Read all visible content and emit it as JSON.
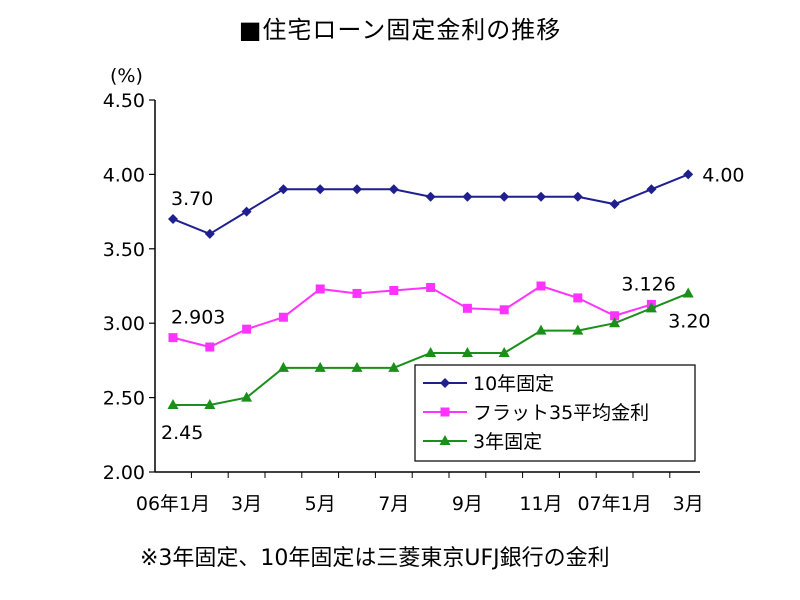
{
  "chart_data": {
    "type": "line",
    "title": "■住宅ローン固定金利の推移",
    "y_unit": "(%)",
    "ylim": [
      2.0,
      4.5
    ],
    "y_ticks": [
      "2.00",
      "2.50",
      "3.00",
      "3.50",
      "4.00",
      "4.50"
    ],
    "x_tick_labels": [
      "06年1月",
      "3月",
      "5月",
      "7月",
      "9月",
      "11月",
      "07年1月",
      "3月"
    ],
    "x_tick_indices": [
      0,
      2,
      4,
      6,
      8,
      10,
      12,
      14
    ],
    "n_points": 15,
    "legend_position": "bottom-right",
    "grid": false,
    "series": [
      {
        "name": "10年固定",
        "color": "#1f1f8f",
        "marker": "diamond",
        "values": [
          3.7,
          3.6,
          3.75,
          3.9,
          3.9,
          3.9,
          3.9,
          3.85,
          3.85,
          3.85,
          3.85,
          3.85,
          3.8,
          3.9,
          4.0
        ]
      },
      {
        "name": "フラット35平均金利",
        "color": "#ff33ff",
        "marker": "square",
        "values": [
          2.903,
          2.84,
          2.96,
          3.04,
          3.23,
          3.2,
          3.22,
          3.24,
          3.1,
          3.09,
          3.25,
          3.17,
          3.05,
          3.126,
          null
        ]
      },
      {
        "name": "3年固定",
        "color": "#1a8f1a",
        "marker": "triangle",
        "values": [
          2.45,
          2.45,
          2.5,
          2.7,
          2.7,
          2.7,
          2.7,
          2.8,
          2.8,
          2.8,
          2.95,
          2.95,
          3.0,
          3.1,
          3.2
        ]
      }
    ],
    "annotations": [
      {
        "text": "3.70",
        "series": 0,
        "index": 0,
        "anchor": "above"
      },
      {
        "text": "4.00",
        "series": 0,
        "index": 14,
        "anchor": "right"
      },
      {
        "text": "2.903",
        "series": 1,
        "index": 0,
        "anchor": "above"
      },
      {
        "text": "3.126",
        "series": 1,
        "index": 13,
        "anchor": "above"
      },
      {
        "text": "2.45",
        "series": 2,
        "index": 0,
        "anchor": "below"
      },
      {
        "text": "3.20",
        "series": 2,
        "index": 14,
        "anchor": "below"
      }
    ],
    "footnote": "※3年固定、10年固定は三菱東京UFJ銀行の金利"
  }
}
